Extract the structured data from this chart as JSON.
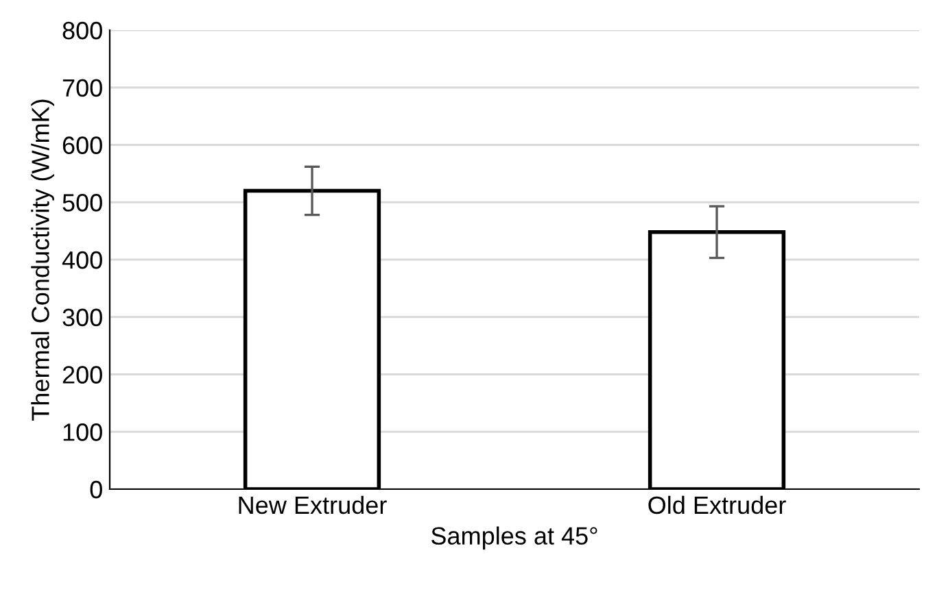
{
  "chart_data": {
    "type": "bar",
    "xlabel": "Samples at 45°",
    "ylabel": "Thermal Conductivity (W/mK)",
    "categories": [
      "New Extruder",
      "Old Extruder"
    ],
    "values": [
      520,
      448
    ],
    "errors": [
      42,
      45
    ],
    "color": "#ffffff",
    "ylim": [
      0,
      800
    ],
    "yticks": [
      0,
      100,
      200,
      300,
      400,
      500,
      600,
      700,
      800
    ],
    "grid": "y"
  }
}
